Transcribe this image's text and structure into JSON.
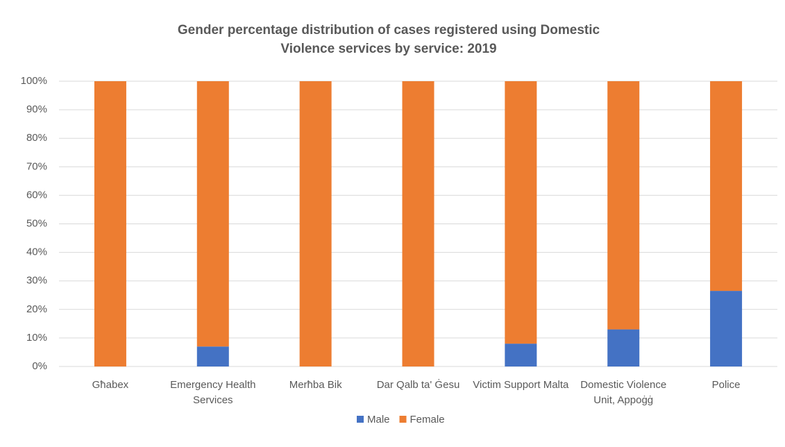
{
  "chart_data": {
    "type": "stacked_bar",
    "title": "Gender percentage distribution of cases registered using Domestic Violence services by service: 2019",
    "categories": [
      "Għabex",
      "Emergency Health Services",
      "Merħba Bik",
      "Dar Qalb ta' Ġesu",
      "Victim Support Malta",
      "Domestic Violence Unit, Appoġġ",
      "Police"
    ],
    "series": [
      {
        "name": "Male",
        "color": "#4472c4",
        "values": [
          0,
          7,
          0,
          0,
          8,
          13,
          26.5
        ]
      },
      {
        "name": "Female",
        "color": "#ed7d31",
        "values": [
          100,
          93,
          100,
          100,
          92,
          87,
          73.5
        ]
      }
    ],
    "ylim": [
      0,
      100
    ],
    "yticks": [
      {
        "value": 0,
        "label": "0%"
      },
      {
        "value": 10,
        "label": "10%"
      },
      {
        "value": 20,
        "label": "20%"
      },
      {
        "value": 30,
        "label": "30%"
      },
      {
        "value": 40,
        "label": "40%"
      },
      {
        "value": 50,
        "label": "50%"
      },
      {
        "value": 60,
        "label": "60%"
      },
      {
        "value": 70,
        "label": "70%"
      },
      {
        "value": 80,
        "label": "80%"
      },
      {
        "value": 90,
        "label": "90%"
      },
      {
        "value": 100,
        "label": "100%"
      }
    ],
    "grid": true,
    "legend": "bottom"
  }
}
